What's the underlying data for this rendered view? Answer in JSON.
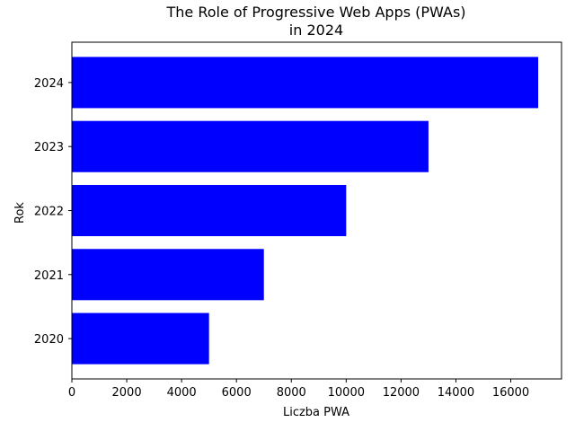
{
  "chart_data": {
    "type": "bar",
    "orientation": "horizontal",
    "title": "The Role of Progressive Web Apps (PWAs)\nin 2024",
    "xlabel": "Liczba PWA",
    "ylabel": "Rok",
    "categories": [
      "2020",
      "2021",
      "2022",
      "2023",
      "2024"
    ],
    "values": [
      5000,
      7000,
      10000,
      13000,
      17000
    ],
    "xlim": [
      0,
      17850
    ],
    "xticks": [
      0,
      2000,
      4000,
      6000,
      8000,
      10000,
      12000,
      14000,
      16000
    ],
    "bar_color": "#0000ff",
    "grid": false,
    "legend": "none"
  }
}
